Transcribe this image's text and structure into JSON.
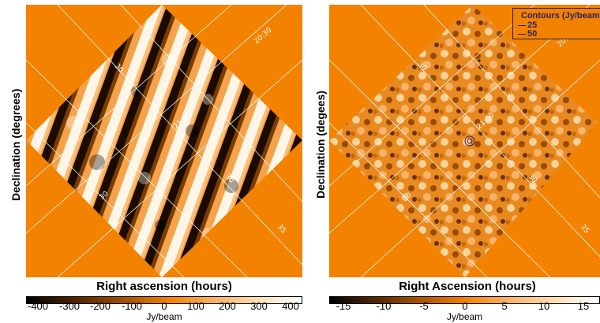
{
  "left_panel": {
    "ylabel": "Declination (degrees)",
    "xlabel": "Right ascension (hours)",
    "grid_labels": [
      "20:30",
      "30",
      "21:00",
      "30",
      "30",
      "35"
    ],
    "colorbar": {
      "ticks": [
        "-400",
        "-300",
        "-200",
        "-100",
        "0",
        "100",
        "200",
        "300",
        "400"
      ],
      "unit": "Jy/beam"
    }
  },
  "right_panel": {
    "ylabel": "Declination (degees)",
    "xlabel": "Right Ascension (hours)",
    "grid_labels": [
      "20:30",
      "30",
      "21:00",
      "30",
      "30",
      "35"
    ],
    "legend": {
      "title": "Contours (Jy/beam)",
      "items": [
        "25",
        "50"
      ]
    },
    "colorbar": {
      "ticks": [
        "-15",
        "-10",
        "-5",
        "0",
        "5",
        "10",
        "15"
      ],
      "unit": "Jy/beam"
    }
  },
  "colors": {
    "background": "#f28200",
    "grid": "#ffffff",
    "colormap": [
      "#000000",
      "#5a2a00",
      "#b05800",
      "#f28200",
      "#f9b060",
      "#fde0b8",
      "#ffffff"
    ],
    "contour": "#2a1f66"
  }
}
